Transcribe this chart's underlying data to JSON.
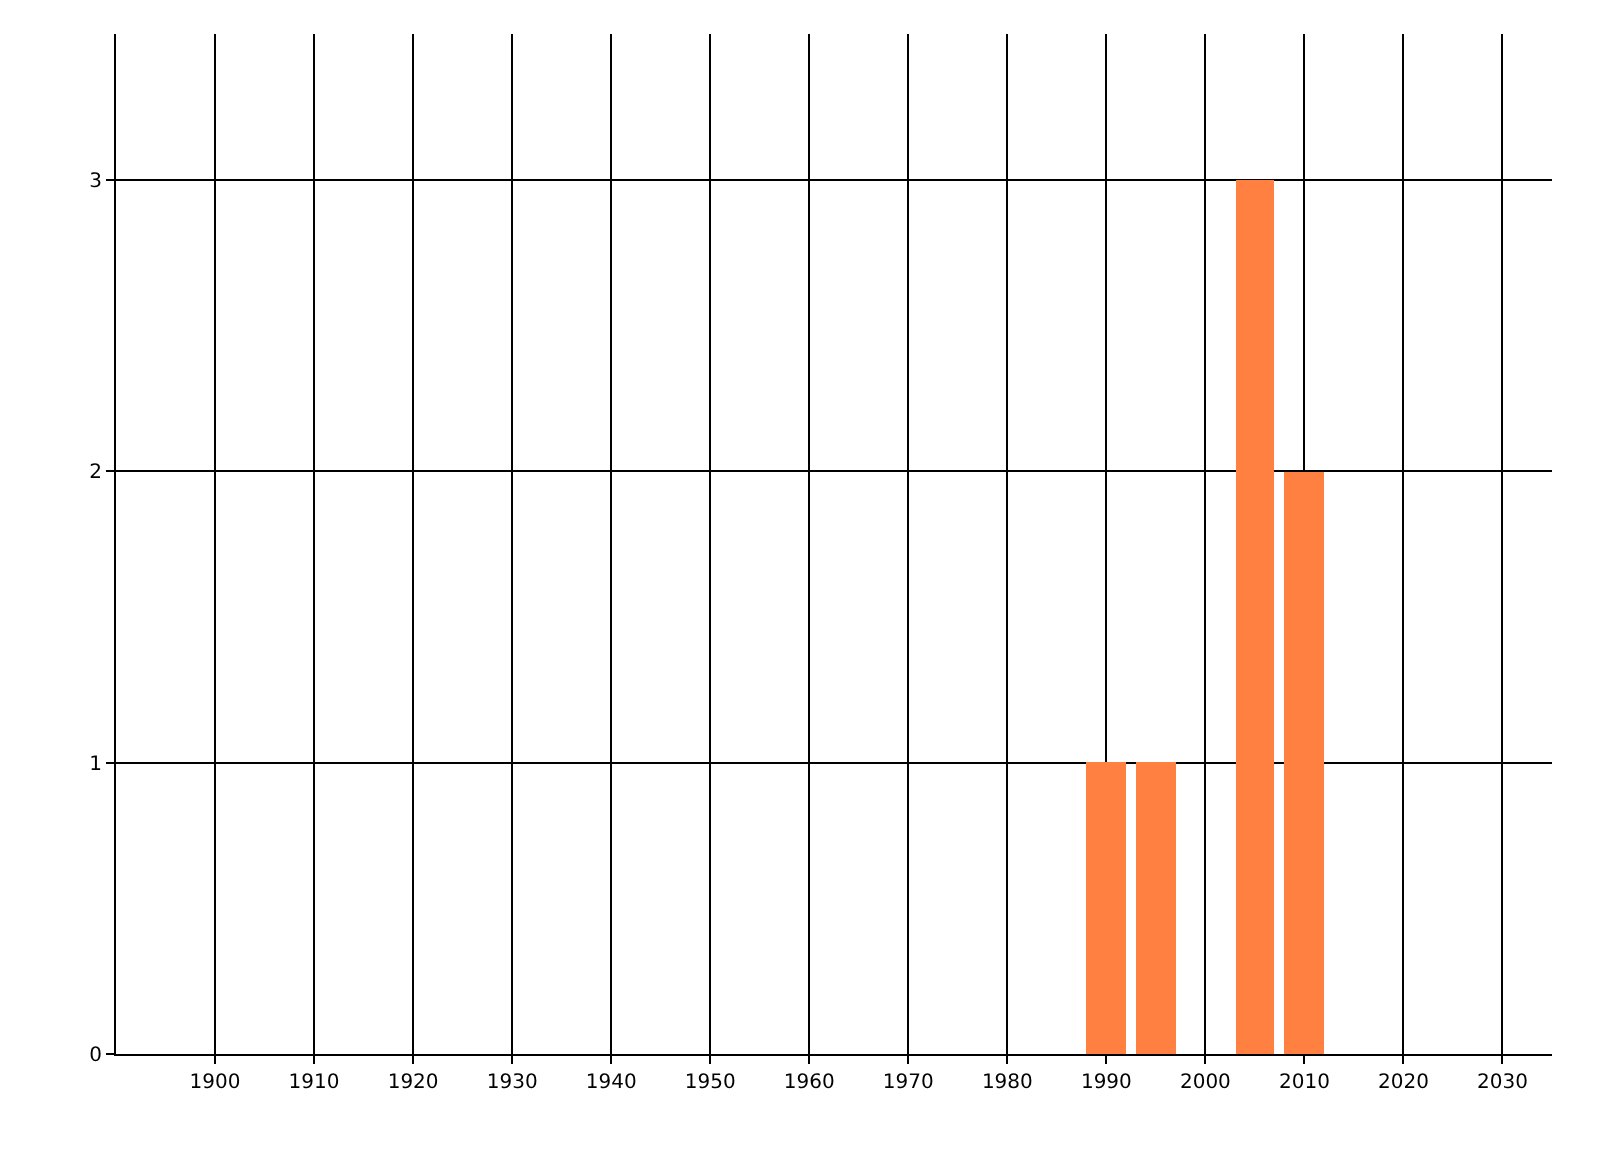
{
  "chart_data": {
    "type": "bar",
    "x": [
      1990,
      1995,
      2005,
      2010
    ],
    "values": [
      1,
      1,
      3,
      2
    ],
    "color": "#ff8040",
    "xlim": [
      1890,
      2035
    ],
    "xticks": [
      1900,
      1910,
      1920,
      1930,
      1940,
      1950,
      1960,
      1970,
      1980,
      1990,
      2000,
      2010,
      2020,
      2030
    ],
    "ylim": [
      0,
      3.5
    ],
    "yticks": [
      0,
      1,
      2,
      3
    ],
    "grid": true
  }
}
